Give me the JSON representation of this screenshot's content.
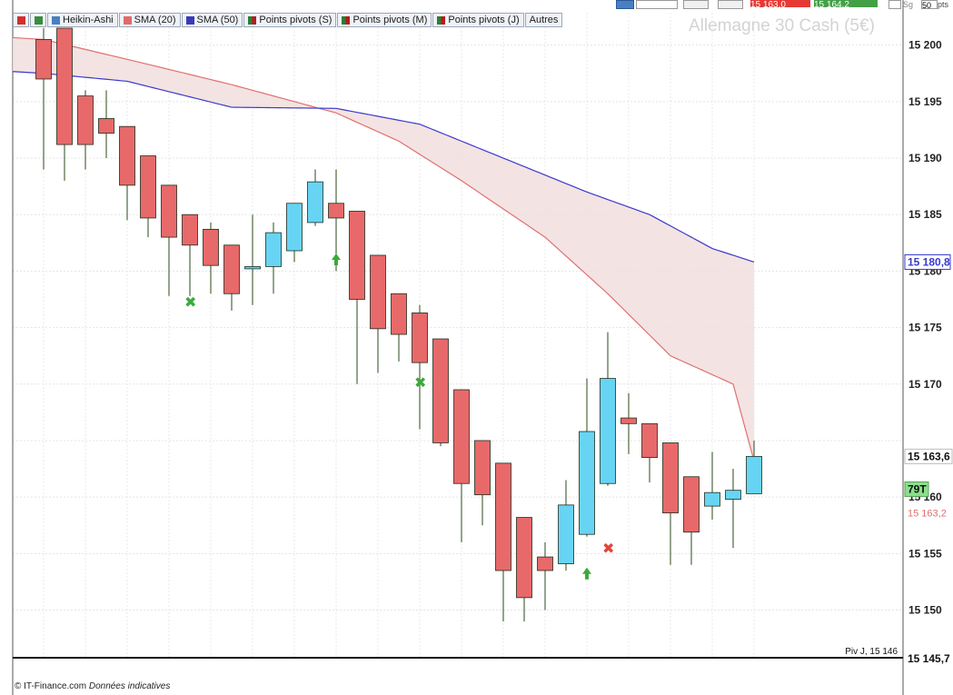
{
  "toolbar": {
    "items": [
      {
        "label": "Heikin-Ashi",
        "color": "#4a7fc1"
      },
      {
        "label": "SMA (20)",
        "color": "#e06a6a"
      },
      {
        "label": "SMA (50)",
        "color": "#3a3ab8"
      },
      {
        "label": "Points pivots (S)",
        "color": "#2e7d32"
      },
      {
        "label": "Points pivots (M)",
        "color": "#2e7d32"
      },
      {
        "label": "Points pivots (J)",
        "color": "#2e7d32"
      },
      {
        "label": "Autres",
        "color": ""
      }
    ]
  },
  "header": {
    "bid": "15 163,0",
    "ask": "15 164,2",
    "sg_label": "Sg",
    "sg_value": "50",
    "sg_unit": "pts"
  },
  "watermark": "Allemagne 30 Cash (5€)",
  "footer": {
    "source": "© IT-Finance.com",
    "note": "Données indicatives"
  },
  "colors": {
    "down": "#e8696a",
    "up": "#67d4f4",
    "sma20": "#e07070",
    "sma50": "#3a3acc",
    "fill": "#f2dede"
  },
  "chart_data": {
    "type": "candlestick",
    "ylim": [
      15145.7,
      15201.5
    ],
    "y_ticks": [
      15150,
      15155,
      15160,
      15165,
      15170,
      15175,
      15180,
      15185,
      15190,
      15195,
      15200
    ],
    "y_tick_labels": [
      "15 150",
      "15 155",
      "15 160",
      "",
      "15 170",
      "15 175",
      "15 180",
      "15 185",
      "15 190",
      "15 195",
      "15 200"
    ],
    "price_labels": {
      "last": "15 163,6",
      "sma20": "15 163,2",
      "sma50": "15 180,8",
      "pivot": "15 145,7",
      "ticks": "79T"
    },
    "pivot_line": {
      "label": "Piv J, 15 146",
      "value": 15145.7
    },
    "candles": [
      {
        "o": 15200.5,
        "c": 15197.0,
        "h": 15201.5,
        "l": 15189.0
      },
      {
        "o": 15201.5,
        "c": 15191.2,
        "h": 15201.5,
        "l": 15188.0
      },
      {
        "o": 15195.5,
        "c": 15191.2,
        "h": 15196.0,
        "l": 15189.0
      },
      {
        "o": 15193.5,
        "c": 15192.2,
        "h": 15196.0,
        "l": 15190.0
      },
      {
        "o": 15192.8,
        "c": 15187.6,
        "h": 15192.8,
        "l": 15184.5
      },
      {
        "o": 15190.2,
        "c": 15184.7,
        "h": 15190.2,
        "l": 15183.0
      },
      {
        "o": 15187.6,
        "c": 15183.0,
        "h": 15187.6,
        "l": 15177.8
      },
      {
        "o": 15185.0,
        "c": 15182.3,
        "h": 15185.0,
        "l": 15177.8
      },
      {
        "o": 15183.7,
        "c": 15180.5,
        "h": 15184.3,
        "l": 15178.0
      },
      {
        "o": 15182.3,
        "c": 15178.0,
        "h": 15182.3,
        "l": 15176.5
      },
      {
        "o": 15180.2,
        "c": 15180.4,
        "h": 15185.0,
        "l": 15177.0
      },
      {
        "o": 15180.4,
        "c": 15183.4,
        "h": 15184.3,
        "l": 15178.0
      },
      {
        "o": 15181.8,
        "c": 15186.0,
        "h": 15186.0,
        "l": 15180.8
      },
      {
        "o": 15184.3,
        "c": 15187.9,
        "h": 15189.0,
        "l": 15184.0
      },
      {
        "o": 15186.0,
        "c": 15184.7,
        "h": 15189.0,
        "l": 15180.0
      },
      {
        "o": 15185.3,
        "c": 15177.5,
        "h": 15185.3,
        "l": 15170.0
      },
      {
        "o": 15181.4,
        "c": 15174.9,
        "h": 15181.4,
        "l": 15171.0
      },
      {
        "o": 15178.0,
        "c": 15174.4,
        "h": 15178.0,
        "l": 15172.0
      },
      {
        "o": 15176.3,
        "c": 15171.9,
        "h": 15177.0,
        "l": 15166.0
      },
      {
        "o": 15174.0,
        "c": 15164.8,
        "h": 15174.0,
        "l": 15164.5
      },
      {
        "o": 15169.5,
        "c": 15161.2,
        "h": 15169.5,
        "l": 15156.0
      },
      {
        "o": 15165.0,
        "c": 15160.2,
        "h": 15165.0,
        "l": 15157.5
      },
      {
        "o": 15163.0,
        "c": 15153.5,
        "h": 15163.0,
        "l": 15149.0
      },
      {
        "o": 15158.2,
        "c": 15151.1,
        "h": 15158.2,
        "l": 15149.0
      },
      {
        "o": 15154.7,
        "c": 15153.5,
        "h": 15156.0,
        "l": 15150.0
      },
      {
        "o": 15154.1,
        "c": 15159.3,
        "h": 15161.5,
        "l": 15153.5
      },
      {
        "o": 15156.7,
        "c": 15165.8,
        "h": 15170.5,
        "l": 15156.5
      },
      {
        "o": 15161.2,
        "c": 15170.5,
        "h": 15174.6,
        "l": 15161.0
      },
      {
        "o": 15167.0,
        "c": 15166.5,
        "h": 15169.2,
        "l": 15163.8
      },
      {
        "o": 15166.5,
        "c": 15163.5,
        "h": 15166.5,
        "l": 15161.3
      },
      {
        "o": 15164.8,
        "c": 15158.6,
        "h": 15164.8,
        "l": 15154.0
      },
      {
        "o": 15161.8,
        "c": 15156.9,
        "h": 15161.8,
        "l": 15154.0
      },
      {
        "o": 15159.2,
        "c": 15160.4,
        "h": 15164.0,
        "l": 15158.0
      },
      {
        "o": 15159.8,
        "c": 15160.6,
        "h": 15162.5,
        "l": 15155.5
      },
      {
        "o": 15160.3,
        "c": 15163.6,
        "h": 15165.0,
        "l": 15160.3
      }
    ],
    "sma20": [
      [
        0,
        15200.5
      ],
      [
        5,
        15198.3
      ],
      [
        9,
        15196.5
      ],
      [
        14,
        15194.0
      ],
      [
        17,
        15191.5
      ],
      [
        20,
        15188.0
      ],
      [
        24,
        15183.0
      ],
      [
        27,
        15178.0
      ],
      [
        30,
        15172.5
      ],
      [
        33,
        15170.0
      ],
      [
        34,
        15163.2
      ]
    ],
    "sma50": [
      [
        0,
        15197.5
      ],
      [
        4,
        15196.8
      ],
      [
        9,
        15194.5
      ],
      [
        14,
        15194.4
      ],
      [
        18,
        15193.0
      ],
      [
        22,
        15190.0
      ],
      [
        26,
        15187.0
      ],
      [
        29,
        15185.0
      ],
      [
        32,
        15182.0
      ],
      [
        34,
        15180.8
      ]
    ],
    "signals": [
      {
        "i": 7,
        "type": "cross",
        "y": 15177.3,
        "color": "green"
      },
      {
        "i": 14,
        "type": "up-arrow",
        "y": 15181.0,
        "color": "green"
      },
      {
        "i": 18,
        "type": "cross",
        "y": 15170.2,
        "color": "green"
      },
      {
        "i": 26,
        "type": "up-arrow",
        "y": 15153.2,
        "color": "green"
      },
      {
        "i": 27,
        "type": "cross",
        "y": 15155.5,
        "color": "red"
      }
    ]
  }
}
